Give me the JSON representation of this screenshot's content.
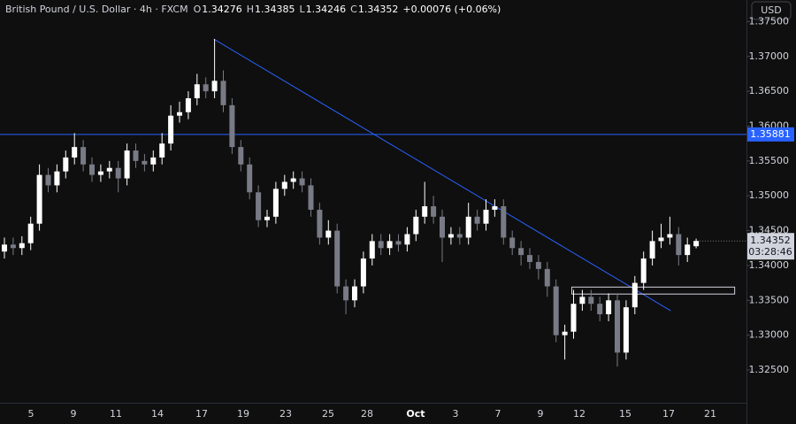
{
  "chart_data": {
    "type": "candlestick",
    "title": "British Pound / U.S. Dollar · 4h · FXCM",
    "ohlc_labels": [
      "O",
      "H",
      "L",
      "C"
    ],
    "change": "+0.00076 (+0.06%)",
    "currency": "USD",
    "countdown": "03:28:46",
    "up_color": "#ffffff",
    "down_color": "#787b86",
    "open": [
      1.342,
      1.343,
      1.3425,
      1.3432,
      1.346,
      1.353,
      1.3515,
      1.3535,
      1.3555,
      1.357,
      1.3545,
      1.353,
      1.3535,
      1.354,
      1.3525,
      1.3565,
      1.355,
      1.3545,
      1.3555,
      1.3575,
      1.3615,
      1.362,
      1.364,
      1.366,
      1.365,
      1.3665,
      1.363,
      1.357,
      1.3545,
      1.3505,
      1.3465,
      1.347,
      1.351,
      1.352,
      1.3525,
      1.3515,
      1.348,
      1.344,
      1.345,
      1.337,
      1.335,
      1.337,
      1.341,
      1.3435,
      1.3425,
      1.3435,
      1.343,
      1.3445,
      1.347,
      1.3485,
      1.347,
      1.344,
      1.3445,
      1.344,
      1.347,
      1.346,
      1.348,
      1.3485,
      1.344,
      1.3425,
      1.3415,
      1.3405,
      1.3395,
      1.337,
      1.33,
      1.3305,
      1.3345,
      1.3355,
      1.3345,
      1.333,
      1.335,
      1.3275,
      1.334,
      1.3375,
      1.341,
      1.3435,
      1.344,
      1.3445,
      1.3415,
      1.34276
    ],
    "high": [
      1.344,
      1.344,
      1.3442,
      1.347,
      1.3545,
      1.354,
      1.3545,
      1.3565,
      1.359,
      1.358,
      1.3555,
      1.3545,
      1.355,
      1.355,
      1.3575,
      1.3575,
      1.356,
      1.3565,
      1.359,
      1.363,
      1.3635,
      1.365,
      1.3675,
      1.367,
      1.3725,
      1.368,
      1.364,
      1.358,
      1.3555,
      1.3515,
      1.348,
      1.352,
      1.353,
      1.3535,
      1.3535,
      1.3525,
      1.349,
      1.3465,
      1.346,
      1.338,
      1.338,
      1.342,
      1.3445,
      1.3445,
      1.3445,
      1.3445,
      1.3455,
      1.348,
      1.352,
      1.35,
      1.348,
      1.3455,
      1.3455,
      1.349,
      1.348,
      1.3495,
      1.3495,
      1.3495,
      1.345,
      1.3435,
      1.3425,
      1.3415,
      1.3405,
      1.338,
      1.3315,
      1.3365,
      1.3365,
      1.3365,
      1.3355,
      1.336,
      1.336,
      1.335,
      1.3385,
      1.342,
      1.345,
      1.346,
      1.347,
      1.3455,
      1.344,
      1.34385
    ],
    "low": [
      1.341,
      1.3415,
      1.3415,
      1.3422,
      1.345,
      1.3505,
      1.3505,
      1.3525,
      1.3545,
      1.3535,
      1.352,
      1.352,
      1.3525,
      1.3505,
      1.3515,
      1.354,
      1.3535,
      1.3535,
      1.3545,
      1.3565,
      1.3605,
      1.361,
      1.363,
      1.364,
      1.364,
      1.362,
      1.356,
      1.3535,
      1.3495,
      1.3455,
      1.3455,
      1.346,
      1.35,
      1.351,
      1.3505,
      1.347,
      1.343,
      1.343,
      1.336,
      1.333,
      1.334,
      1.336,
      1.34,
      1.3415,
      1.3415,
      1.342,
      1.342,
      1.3435,
      1.346,
      1.346,
      1.3405,
      1.343,
      1.343,
      1.343,
      1.345,
      1.345,
      1.347,
      1.343,
      1.3415,
      1.34,
      1.3395,
      1.338,
      1.3355,
      1.329,
      1.3265,
      1.3295,
      1.3335,
      1.3335,
      1.332,
      1.332,
      1.3255,
      1.3265,
      1.333,
      1.3365,
      1.34,
      1.3425,
      1.343,
      1.34,
      1.3405,
      1.34246
    ],
    "close": [
      1.343,
      1.3425,
      1.3432,
      1.346,
      1.353,
      1.3515,
      1.3535,
      1.3555,
      1.357,
      1.3545,
      1.353,
      1.3535,
      1.354,
      1.3525,
      1.3565,
      1.355,
      1.3545,
      1.3555,
      1.3575,
      1.3615,
      1.362,
      1.364,
      1.366,
      1.365,
      1.3665,
      1.363,
      1.357,
      1.3545,
      1.3505,
      1.3465,
      1.347,
      1.351,
      1.352,
      1.3525,
      1.3515,
      1.348,
      1.344,
      1.345,
      1.337,
      1.335,
      1.337,
      1.341,
      1.3435,
      1.3425,
      1.3435,
      1.343,
      1.3445,
      1.347,
      1.3485,
      1.347,
      1.344,
      1.3445,
      1.344,
      1.347,
      1.346,
      1.348,
      1.3485,
      1.344,
      1.3425,
      1.3415,
      1.3405,
      1.3395,
      1.337,
      1.33,
      1.3305,
      1.3345,
      1.3355,
      1.3345,
      1.333,
      1.335,
      1.3275,
      1.334,
      1.3375,
      1.341,
      1.3435,
      1.344,
      1.3445,
      1.3415,
      1.343,
      1.34352
    ],
    "ylim": [
      1.3203,
      1.3781
    ],
    "yticks": [
      {
        "value": 1.325,
        "label": "1.32500"
      },
      {
        "value": 1.33,
        "label": "1.33000"
      },
      {
        "value": 1.335,
        "label": "1.33500"
      },
      {
        "value": 1.34,
        "label": "1.34000"
      },
      {
        "value": 1.345,
        "label": "1.34500"
      },
      {
        "value": 1.35,
        "label": "1.35000"
      },
      {
        "value": 1.355,
        "label": "1.35500"
      },
      {
        "value": 1.36,
        "label": "1.36000"
      },
      {
        "value": 1.365,
        "label": "1.36500"
      },
      {
        "value": 1.37,
        "label": "1.37000"
      },
      {
        "value": 1.375,
        "label": "1.37500"
      }
    ],
    "xtick_labels": [
      "5",
      "9",
      "11",
      "14",
      "17",
      "19",
      "23",
      "25",
      "28",
      "Oct",
      "3",
      "7",
      "9",
      "12",
      "15",
      "17",
      "21"
    ],
    "level": {
      "value": 1.35881,
      "color": "#2962ff"
    },
    "trendline": {
      "x": [
        23.9,
        76.1
      ],
      "y": [
        1.3725,
        1.3335
      ],
      "color": "#2962ff"
    },
    "zone": {
      "x": [
        64.8,
        83.4
      ],
      "y": [
        1.3359,
        1.3369
      ]
    }
  }
}
